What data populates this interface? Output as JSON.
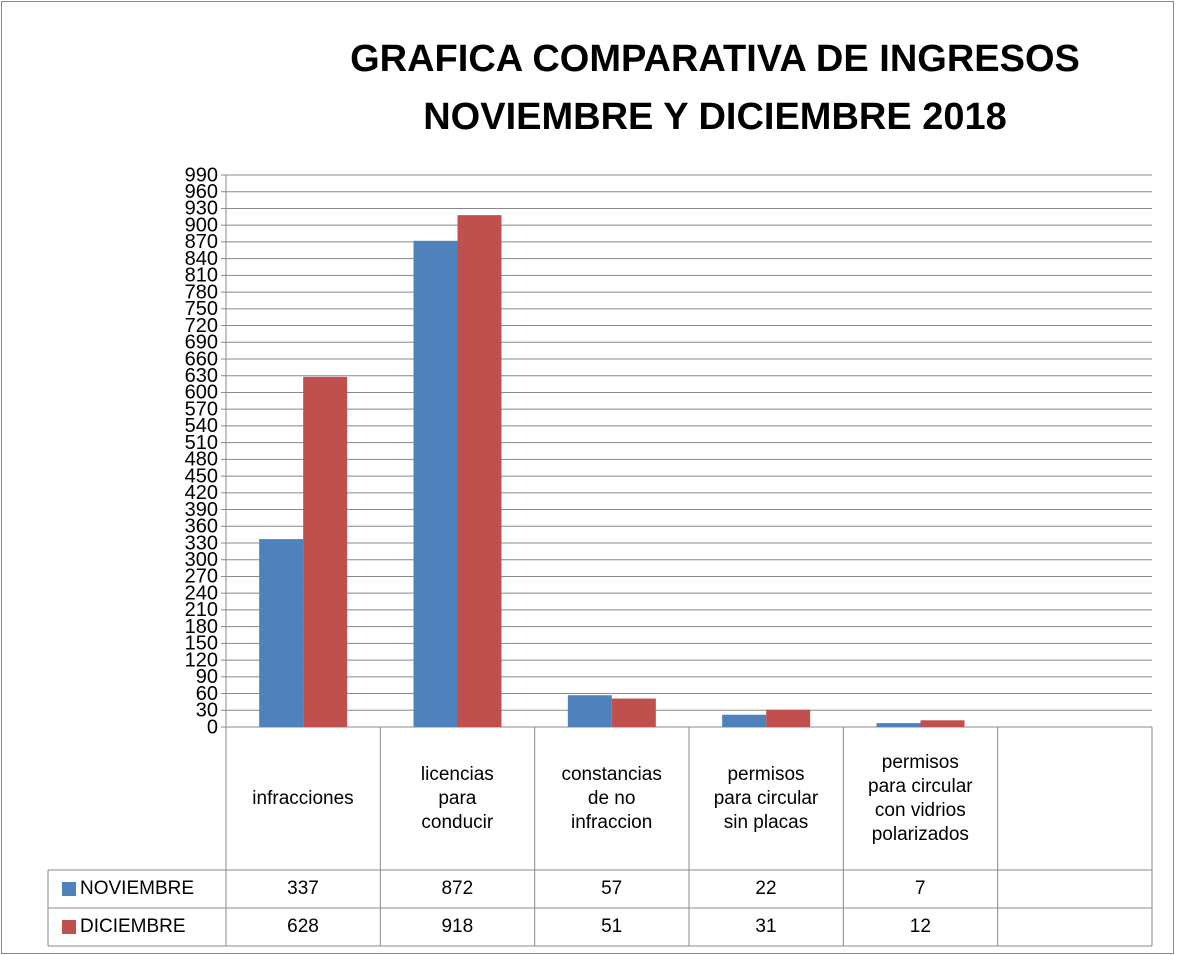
{
  "chart_data": {
    "type": "bar",
    "title": "GRAFICA COMPARATIVA DE INGRESOS\nNOVIEMBRE Y DICIEMBRE 2018",
    "categories": [
      "infracciones",
      "licencias\npara\nconducir",
      "constancias\nde no\ninfraccion",
      "permisos\npara circular\nsin placas",
      "permisos\npara circular\ncon vidrios\npolarizados",
      null
    ],
    "series": [
      {
        "name": "NOVIEMBRE",
        "color": "#4f81bd",
        "values": [
          337,
          872,
          57,
          22,
          7,
          null
        ]
      },
      {
        "name": "DICIEMBRE",
        "color": "#c0504d",
        "values": [
          628,
          918,
          51,
          31,
          12,
          null
        ]
      }
    ],
    "ylim": [
      0,
      990
    ],
    "yticks": [
      0,
      30,
      60,
      90,
      120,
      150,
      180,
      210,
      240,
      270,
      300,
      330,
      360,
      390,
      420,
      450,
      480,
      510,
      540,
      570,
      600,
      630,
      660,
      690,
      720,
      750,
      780,
      810,
      840,
      870,
      900,
      930,
      960,
      990
    ],
    "grid": true
  }
}
